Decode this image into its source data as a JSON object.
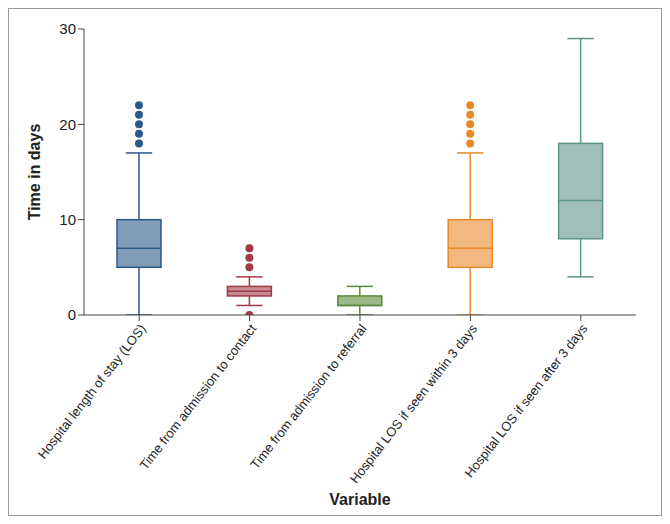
{
  "chart_data": {
    "type": "box",
    "x_label": "Variable",
    "y_label": "Time in days",
    "ylim": [
      0,
      30
    ],
    "yticks": [
      0,
      10,
      20,
      30
    ],
    "grid": false,
    "categories": [
      "Hospital length of stay (LOS)",
      "Time from admission to contact",
      "Time from admission to referral",
      "Hospital LOS if seen within 3 days",
      "Hospital LOS if seen after 3 days"
    ],
    "colors": [
      "#2c5a86",
      "#a33a45",
      "#5b8a3a",
      "#e8892b",
      "#5f9488"
    ],
    "boxes": [
      {
        "min": 0,
        "q1": 5,
        "median": 7,
        "q3": 10,
        "max": 17,
        "outliers": [
          18,
          19,
          20,
          21,
          22
        ]
      },
      {
        "min": 1,
        "q1": 2,
        "median": 2.5,
        "q3": 3,
        "max": 4,
        "outliers": [
          0,
          5,
          6,
          7
        ]
      },
      {
        "min": 0,
        "q1": 1,
        "median": 1,
        "q3": 2,
        "max": 3,
        "outliers": []
      },
      {
        "min": 0,
        "q1": 5,
        "median": 7,
        "q3": 10,
        "max": 17,
        "outliers": [
          18,
          19,
          20,
          21,
          22
        ]
      },
      {
        "min": 4,
        "q1": 8,
        "median": 12,
        "q3": 18,
        "max": 29,
        "outliers": []
      }
    ]
  }
}
